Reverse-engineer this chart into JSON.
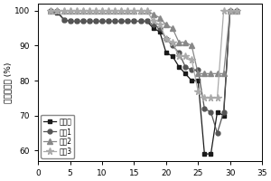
{
  "title": "",
  "ylabel": "容量保持率 (%)",
  "xlabel": "",
  "xlim": [
    0,
    35
  ],
  "ylim": [
    57,
    102
  ],
  "yticks": [
    60,
    70,
    80,
    90,
    100
  ],
  "xticks": [
    0,
    5,
    10,
    15,
    20,
    25,
    30,
    35
  ],
  "series": [
    {
      "label": "对比例",
      "marker": "s",
      "color": "#1a1a1a",
      "x": [
        2,
        3,
        4,
        5,
        6,
        7,
        8,
        9,
        10,
        11,
        12,
        13,
        14,
        15,
        16,
        17,
        18,
        19,
        20,
        21,
        22,
        23,
        24,
        25,
        26,
        27,
        28,
        29,
        30,
        31
      ],
      "y": [
        100,
        99.5,
        97.5,
        97,
        97,
        97,
        97,
        97,
        97,
        97,
        97,
        97,
        97,
        97,
        97,
        97,
        95,
        94,
        88,
        87,
        84,
        82,
        80,
        80,
        59,
        59,
        71,
        70,
        100,
        100
      ]
    },
    {
      "label": "实例1",
      "marker": "o",
      "color": "#555555",
      "x": [
        2,
        3,
        4,
        5,
        6,
        7,
        8,
        9,
        10,
        11,
        12,
        13,
        14,
        15,
        16,
        17,
        18,
        19,
        20,
        21,
        22,
        23,
        24,
        25,
        26,
        27,
        28,
        29,
        30,
        31
      ],
      "y": [
        100,
        100,
        97.5,
        97,
        97,
        97,
        97,
        97,
        97,
        97,
        97,
        97,
        97,
        97,
        97,
        97,
        96,
        95,
        92,
        90,
        88,
        84,
        83,
        83,
        72,
        71,
        65,
        71,
        100,
        100
      ]
    },
    {
      "label": "实例2",
      "marker": "^",
      "color": "#888888",
      "x": [
        2,
        3,
        4,
        5,
        6,
        7,
        8,
        9,
        10,
        11,
        12,
        13,
        14,
        15,
        16,
        17,
        18,
        19,
        20,
        21,
        22,
        23,
        24,
        25,
        26,
        27,
        28,
        29,
        30,
        31
      ],
      "y": [
        100,
        100,
        100,
        100,
        100,
        100,
        100,
        100,
        100,
        100,
        100,
        100,
        100,
        100,
        100,
        100,
        99,
        98,
        96,
        95,
        91,
        91,
        90,
        82,
        82,
        82,
        82,
        82,
        100,
        100
      ]
    },
    {
      "label": "实例3",
      "marker": "*",
      "color": "#aaaaaa",
      "x": [
        2,
        3,
        4,
        5,
        6,
        7,
        8,
        9,
        10,
        11,
        12,
        13,
        14,
        15,
        16,
        17,
        18,
        19,
        20,
        21,
        22,
        23,
        24,
        25,
        26,
        27,
        28,
        29,
        30,
        31
      ],
      "y": [
        100,
        100,
        100,
        100,
        100,
        100,
        100,
        100,
        100,
        100,
        100,
        100,
        100,
        100,
        100,
        100,
        97,
        96,
        92,
        91,
        87,
        87,
        86,
        77,
        75,
        75,
        75,
        100,
        100,
        100
      ]
    }
  ],
  "background_color": "#ffffff",
  "legend_loc": "lower left",
  "legend_fontsize": 5.5,
  "axis_fontsize": 6.5,
  "tick_fontsize": 6.5,
  "linewidth": 0.9,
  "markersize": 3.5
}
